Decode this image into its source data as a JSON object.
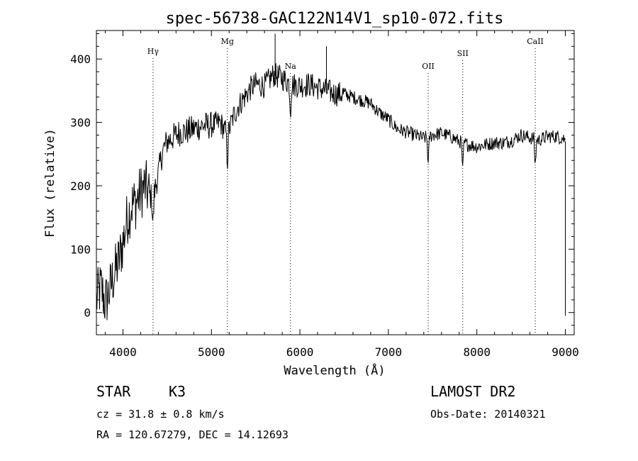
{
  "chart_data": {
    "type": "line",
    "title": "spec-56738-GAC122N14V1_sp10-072.fits",
    "xlabel": "Wavelength (Å)",
    "ylabel": "Flux (relative)",
    "xlim": [
      3700,
      9100
    ],
    "ylim": [
      -35,
      445
    ],
    "xticks": [
      4000,
      5000,
      6000,
      7000,
      8000,
      9000
    ],
    "yticks": [
      0,
      100,
      200,
      300,
      400
    ],
    "grid": false,
    "series": [
      {
        "x": [
          3700,
          3750,
          3800,
          3850,
          3900,
          3950,
          4000,
          4050,
          4100,
          4150,
          4200,
          4250,
          4300,
          4340,
          4400,
          4450,
          4500,
          4550,
          4600,
          4650,
          4700,
          4800,
          4900,
          5000,
          5100,
          5180,
          5250,
          5300,
          5400,
          5450,
          5500,
          5600,
          5700,
          5800,
          5900,
          6000,
          6100,
          6200,
          6300,
          6400,
          6500,
          6600,
          6700,
          6800,
          6900,
          7000,
          7100,
          7200,
          7300,
          7400,
          7500,
          7600,
          7700,
          7800,
          7900,
          8000,
          8100,
          8200,
          8300,
          8400,
          8500,
          8600,
          8700,
          8800,
          8900,
          8980,
          9000
        ],
        "y": [
          20,
          40,
          15,
          35,
          60,
          80,
          110,
          150,
          170,
          175,
          190,
          200,
          185,
          180,
          220,
          255,
          270,
          275,
          280,
          285,
          285,
          290,
          295,
          295,
          300,
          280,
          310,
          325,
          345,
          355,
          360,
          358,
          375,
          370,
          360,
          358,
          360,
          355,
          350,
          345,
          345,
          340,
          335,
          330,
          315,
          305,
          290,
          285,
          280,
          275,
          280,
          283,
          278,
          270,
          265,
          262,
          265,
          268,
          268,
          272,
          280,
          276,
          272,
          278,
          278,
          275,
          270
        ]
      }
    ],
    "annotations": [
      {
        "label": "Hγ",
        "x": 4340
      },
      {
        "label": "Mg",
        "x": 5180
      },
      {
        "label": "Na",
        "x": 5893
      },
      {
        "label": "OII",
        "x": 7450
      },
      {
        "label": "SII",
        "x": 7840
      },
      {
        "label": "CaII",
        "x": 8660
      }
    ]
  },
  "info": {
    "object_class": "STAR",
    "subclass": "K3",
    "redshift": "cz = 31.8 ± 0.8 km/s",
    "coords": "RA = 120.67279, DEC =  14.12693",
    "survey": "LAMOST DR2",
    "obs_date": "Obs-Date: 20140321"
  }
}
